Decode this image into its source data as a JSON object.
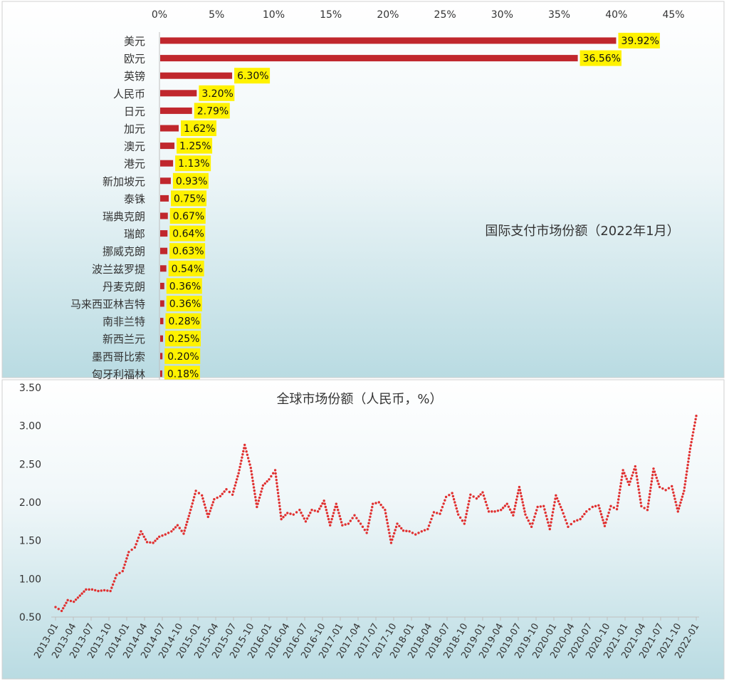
{
  "chart_data": [
    {
      "type": "bar",
      "orientation": "horizontal",
      "title": "国际支付市场份额（2022年1月）",
      "xlim": [
        0,
        45
      ],
      "xticks": [
        "0%",
        "5%",
        "10%",
        "15%",
        "20%",
        "25%",
        "30%",
        "35%",
        "40%",
        "45%"
      ],
      "categories": [
        "美元",
        "欧元",
        "英镑",
        "人民币",
        "日元",
        "加元",
        "澳元",
        "港元",
        "新加坡元",
        "泰铢",
        "瑞典克朗",
        "瑞郎",
        "挪威克朗",
        "波兰兹罗提",
        "丹麦克朗",
        "马来西亚林吉特",
        "南非兰特",
        "新西兰元",
        "墨西哥比索",
        "匈牙利福林"
      ],
      "values": [
        39.92,
        36.56,
        6.3,
        3.2,
        2.79,
        1.62,
        1.25,
        1.13,
        0.93,
        0.75,
        0.67,
        0.64,
        0.63,
        0.54,
        0.36,
        0.36,
        0.28,
        0.25,
        0.2,
        0.18
      ],
      "labels": [
        "39.92%",
        "36.56%",
        "6.30%",
        "3.20%",
        "2.79%",
        "1.62%",
        "1.25%",
        "1.13%",
        "0.93%",
        "0.75%",
        "0.67%",
        "0.64%",
        "0.63%",
        "0.54%",
        "0.36%",
        "0.36%",
        "0.28%",
        "0.25%",
        "0.20%",
        "0.18%"
      ],
      "bar_color": "#c0272d",
      "label_bg": "#fff200",
      "grid": false
    },
    {
      "type": "line",
      "style": "dotted",
      "title": "全球市场份额（人民币，%）",
      "ylim": [
        0.5,
        3.5
      ],
      "yticks": [
        "0.50",
        "1.00",
        "1.50",
        "2.00",
        "2.50",
        "3.00",
        "3.50"
      ],
      "xticks": [
        "2013-01",
        "2013-04",
        "2013-07",
        "2013-10",
        "2014-01",
        "2014-04",
        "2014-07",
        "2014-10",
        "2015-01",
        "2015-04",
        "2015-07",
        "2015-10",
        "2016-01",
        "2016-04",
        "2016-07",
        "2016-10",
        "2017-01",
        "2017-04",
        "2017-07",
        "2017-10",
        "2018-01",
        "2018-04",
        "2018-07",
        "2018-10",
        "2019-01",
        "2019-04",
        "2019-07",
        "2019-10",
        "2020-01",
        "2020-04",
        "2020-07",
        "2020-10",
        "2021-01",
        "2021-04",
        "2021-07",
        "2021-10",
        "2022-01"
      ],
      "x_start": "2013-01",
      "x_end": "2022-01",
      "series": [
        {
          "color": "#e03030",
          "values": [
            0.63,
            0.58,
            0.72,
            0.7,
            0.78,
            0.86,
            0.86,
            0.84,
            0.85,
            0.84,
            1.05,
            1.1,
            1.35,
            1.41,
            1.62,
            1.48,
            1.47,
            1.55,
            1.58,
            1.62,
            1.7,
            1.59,
            1.86,
            2.15,
            2.09,
            1.81,
            2.04,
            2.08,
            2.17,
            2.1,
            2.38,
            2.75,
            2.45,
            1.94,
            2.22,
            2.3,
            2.42,
            1.78,
            1.86,
            1.84,
            1.9,
            1.75,
            1.9,
            1.88,
            2.02,
            1.7,
            1.98,
            1.7,
            1.72,
            1.83,
            1.72,
            1.6,
            1.98,
            2.0,
            1.9,
            1.47,
            1.72,
            1.63,
            1.62,
            1.58,
            1.62,
            1.65,
            1.87,
            1.85,
            2.07,
            2.12,
            1.84,
            1.72,
            2.1,
            2.05,
            2.13,
            1.88,
            1.88,
            1.9,
            1.98,
            1.83,
            2.2,
            1.84,
            1.68,
            1.94,
            1.95,
            1.65,
            2.09,
            1.9,
            1.68,
            1.75,
            1.78,
            1.88,
            1.94,
            1.96,
            1.69,
            1.95,
            1.91,
            2.42,
            2.23,
            2.47,
            1.95,
            1.9,
            2.44,
            2.2,
            2.16,
            2.21,
            1.88,
            2.15,
            2.7,
            3.13
          ]
        }
      ]
    }
  ]
}
